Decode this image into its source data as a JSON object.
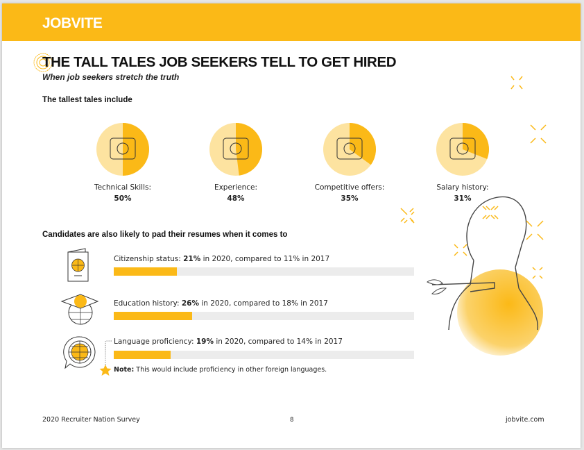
{
  "brand": {
    "logo": "JOBVITE",
    "accent": "#fbb917"
  },
  "title": "THE TALL TALES JOB SEEKERS TELL TO GET HIRED",
  "subtitle": "When job seekers stretch the truth",
  "tales_heading": "The tallest tales include",
  "tales": [
    {
      "label": "Technical Skills:",
      "value": "50%",
      "pct": 50,
      "icon": "gear-tools-icon"
    },
    {
      "label": "Experience:",
      "value": "48%",
      "pct": 48,
      "icon": "person-laptop-clock-icon"
    },
    {
      "label": "Competitive offers:",
      "value": "35%",
      "pct": 35,
      "icon": "hand-document-icon"
    },
    {
      "label": "Salary history:",
      "value": "31%",
      "pct": 31,
      "icon": "money-hand-icon"
    }
  ],
  "pad_heading": "Candidates are also likely to pad their resumes when it comes to",
  "pad_items": [
    {
      "label": "Citizenship status:",
      "value": "21%",
      "rest": "in 2020, compared to 11% in 2017",
      "pct": 21,
      "icon": "passport-icon"
    },
    {
      "label": "Education history:",
      "value": "26%",
      "rest": "in 2020, compared to 18% in 2017",
      "pct": 26,
      "icon": "graduation-globe-icon"
    },
    {
      "label": "Language proficiency:",
      "value": "19%",
      "rest": "in 2020, compared to 14% in 2017",
      "pct": 19,
      "icon": "globe-speech-icon"
    }
  ],
  "note": {
    "label": "Note:",
    "text": "This would include proficiency in other foreign languages."
  },
  "footer": {
    "left": "2020 Recruiter Nation Survey",
    "page": "8",
    "right": "jobvite.com"
  }
}
